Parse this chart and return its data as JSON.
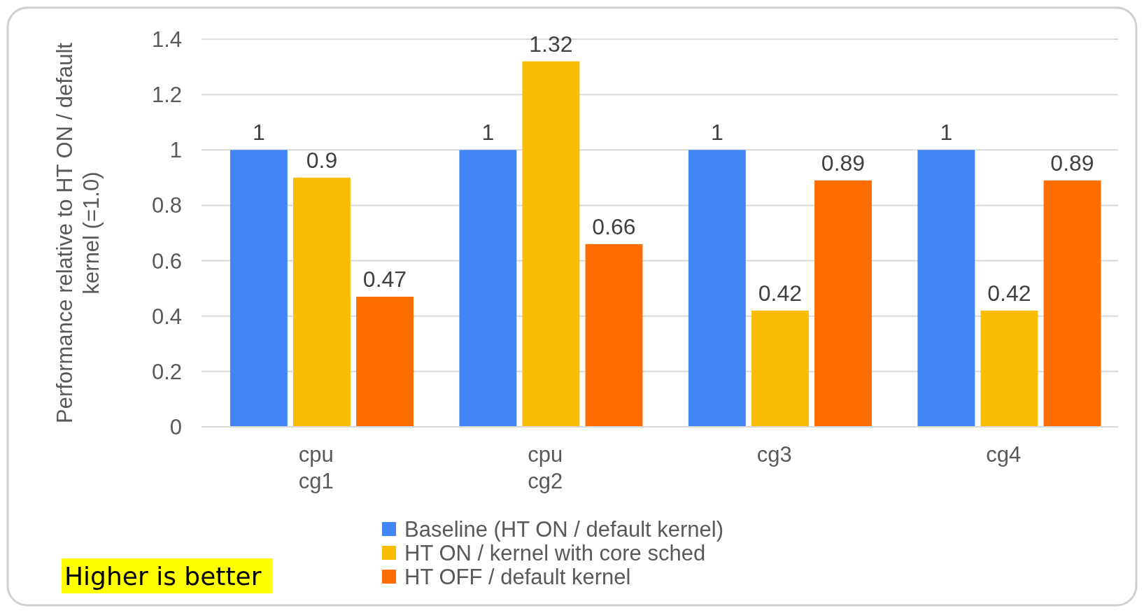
{
  "chart_data": {
    "type": "bar",
    "ylabel": "Performance relative to HT ON / default kernel (=1.0)",
    "categories": [
      "cpu cg1",
      "cpu cg2",
      "cg3",
      "cg4"
    ],
    "series": [
      {
        "name": "Baseline (HT ON / default kernel)",
        "color": "#4285f4",
        "values": [
          1,
          1,
          1,
          1
        ]
      },
      {
        "name": "HT ON / kernel with core sched",
        "color": "#fbbc04",
        "values": [
          0.9,
          1.32,
          0.42,
          0.42
        ]
      },
      {
        "name": "HT OFF / default kernel",
        "color": "#ff6d01",
        "values": [
          0.47,
          0.66,
          0.89,
          0.89
        ]
      }
    ],
    "ylim": [
      0,
      1.4
    ],
    "yticks": [
      0,
      {
        "value": 0.2,
        "label": "0.2"
      },
      {
        "value": 0.4,
        "label": "0.4"
      },
      {
        "value": 0.6,
        "label": "0.6"
      },
      {
        "value": 0.8,
        "label": "0.8"
      },
      1,
      {
        "value": 1.2,
        "label": "1.2"
      },
      {
        "value": 1.4,
        "label": "1.4"
      }
    ],
    "grid": "y",
    "legend": "bottom",
    "data_labels": true,
    "annotations": [
      "Higher is better"
    ]
  }
}
